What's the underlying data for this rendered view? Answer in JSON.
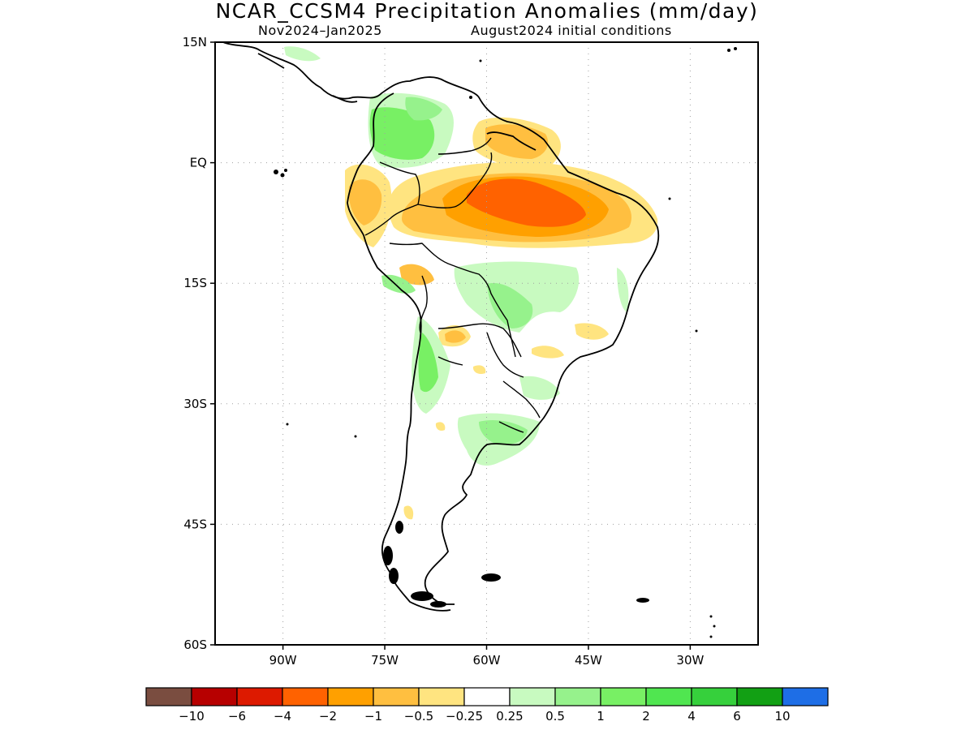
{
  "title": "NCAR_CCSM4 Precipitation Anomalies (mm/day)",
  "subtitle_period": "Nov2024–Jan2025",
  "subtitle_init": "August2024 initial conditions",
  "axes": {
    "lat_labels": [
      {
        "label": "15N",
        "lat": 15
      },
      {
        "label": "EQ",
        "lat": 0
      },
      {
        "label": "15S",
        "lat": -15
      },
      {
        "label": "30S",
        "lat": -30
      },
      {
        "label": "45S",
        "lat": -45
      },
      {
        "label": "60S",
        "lat": -60
      }
    ],
    "lon_labels": [
      {
        "label": "90W",
        "lon": -90
      },
      {
        "label": "75W",
        "lon": -75
      },
      {
        "label": "60W",
        "lon": -60
      },
      {
        "label": "45W",
        "lon": -45
      },
      {
        "label": "30W",
        "lon": -30
      }
    ],
    "lon_range": [
      -100,
      -20
    ],
    "lat_range": [
      -60,
      15
    ],
    "grid": "dotted"
  },
  "colorbar": {
    "colors": [
      "#7a4d40",
      "#b70000",
      "#dd1a00",
      "#ff6200",
      "#ffa000",
      "#ffbf40",
      "#ffe480",
      "#ffffff",
      "#c8fac0",
      "#96f28c",
      "#78f064",
      "#50e650",
      "#36d03c",
      "#12a014",
      "#1e6ee6"
    ],
    "labels": [
      "−10",
      "−6",
      "−4",
      "−2",
      "−1",
      "−0.5",
      "−0.25",
      "0.25",
      "0.5",
      "1",
      "2",
      "4",
      "6",
      "10"
    ]
  },
  "chart_data": {
    "type": "map",
    "variable": "Precipitation Anomalies (mm/day)",
    "regions": [
      {
        "lon": -50,
        "lat": -4,
        "level": "-4"
      },
      {
        "lon": -52,
        "lat": -3,
        "level": "-2"
      },
      {
        "lon": -77,
        "lat": -4,
        "level": "-1"
      },
      {
        "lon": -57,
        "lat": -21,
        "level": "-1"
      },
      {
        "lon": -72,
        "lat": 4,
        "level": "1"
      },
      {
        "lon": -72,
        "lat": -22,
        "level": "1"
      },
      {
        "lon": -55,
        "lat": -19,
        "level": "1"
      },
      {
        "lon": -55,
        "lat": -33,
        "level": "0.5"
      }
    ]
  }
}
